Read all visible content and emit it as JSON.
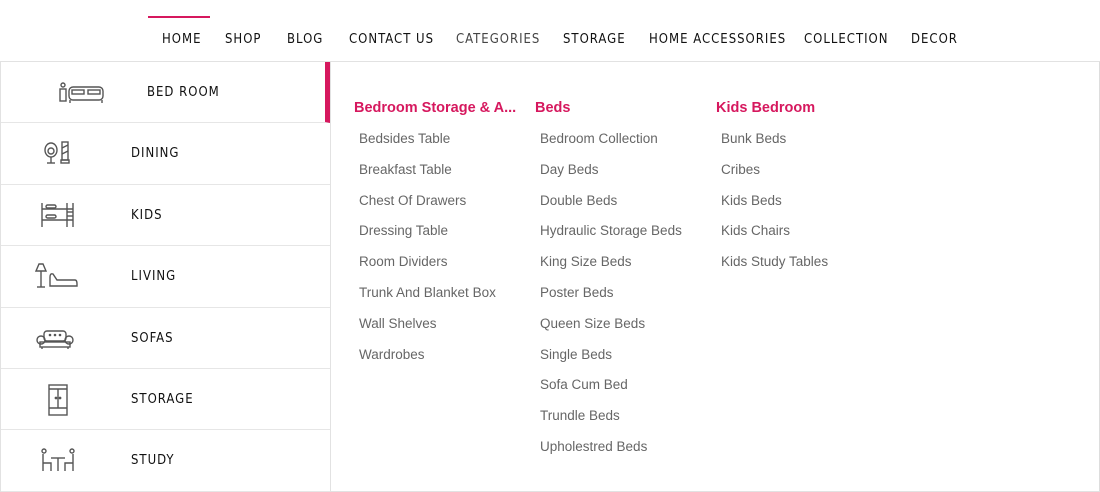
{
  "nav": {
    "items": [
      "HOME",
      "SHOP",
      "BLOG",
      "CONTACT US",
      "CATEGORIES",
      "STORAGE",
      "HOME ACCESSORIES",
      "COLLECTION",
      "DECOR"
    ],
    "active": "HOME",
    "accent": "#d6185e"
  },
  "categories": [
    {
      "label": "BED ROOM",
      "icon": "bed-nightstand-icon",
      "active": true
    },
    {
      "label": "DINING",
      "icon": "chair-mirror-icon"
    },
    {
      "label": "KIDS",
      "icon": "bunk-bed-icon"
    },
    {
      "label": "LIVING",
      "icon": "lamp-chaise-icon"
    },
    {
      "label": "SOFAS",
      "icon": "sofa-icon"
    },
    {
      "label": "STORAGE",
      "icon": "wardrobe-icon"
    },
    {
      "label": "STUDY",
      "icon": "table-chairs-icon"
    }
  ],
  "menu": [
    {
      "heading": "Bedroom Storage & A...",
      "items": [
        "Bedsides Table",
        "Breakfast Table",
        "Chest Of Drawers",
        "Dressing Table",
        "Room Dividers",
        "Trunk And Blanket Box",
        "Wall Shelves",
        "Wardrobes"
      ]
    },
    {
      "heading": "Beds",
      "items": [
        "Bedroom Collection",
        "Day Beds",
        "Double Beds",
        "Hydraulic Storage Beds",
        "King Size Beds",
        "Poster Beds",
        "Queen Size Beds",
        "Single Beds",
        "Sofa Cum Bed",
        "Trundle Beds",
        "Upholestred Beds"
      ]
    },
    {
      "heading": "Kids Bedroom",
      "items": [
        "Bunk Beds",
        "Cribes",
        "Kids Beds",
        "Kids Chairs",
        "Kids Study Tables"
      ]
    }
  ]
}
